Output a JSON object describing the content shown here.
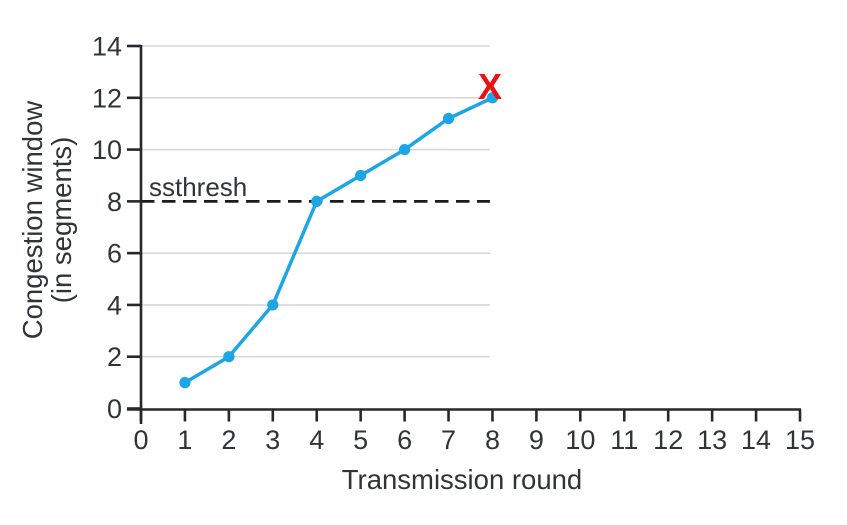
{
  "chart_data": {
    "type": "line",
    "title": "",
    "xlabel": "Transmission round",
    "ylabel": [
      "Congestion window",
      "(in segments)"
    ],
    "x": [
      1,
      2,
      3,
      4,
      5,
      6,
      7,
      8
    ],
    "series": [
      {
        "name": "congestion window",
        "values": [
          1,
          2,
          4,
          8,
          9,
          10,
          11.2,
          12
        ]
      }
    ],
    "xlim": [
      0,
      15
    ],
    "ylim": [
      0,
      14
    ],
    "xticks": [
      0,
      1,
      2,
      3,
      4,
      5,
      6,
      7,
      8,
      9,
      10,
      11,
      12,
      13,
      14,
      15
    ],
    "yticks": [
      0,
      2,
      4,
      6,
      8,
      10,
      12,
      14
    ],
    "grid": "horizontal gridlines at even y values, drawn only over rounds 0-8",
    "legend": "none",
    "annotations": [
      {
        "name": "ssthresh-line",
        "type": "dashed-hline",
        "label": "ssthresh",
        "y": 8,
        "x_start": 0,
        "x_end": 8
      },
      {
        "name": "loss-marker",
        "type": "text",
        "label": "X",
        "x": 8,
        "y": 12
      }
    ],
    "colors": {
      "line": "#1ca6e4",
      "marker": "#1ca6e4",
      "grid": "#d8d8d8",
      "axis": "#26282c",
      "text": "#303338",
      "dashed": "#1b1b1b",
      "loss": "#ee1111"
    }
  }
}
